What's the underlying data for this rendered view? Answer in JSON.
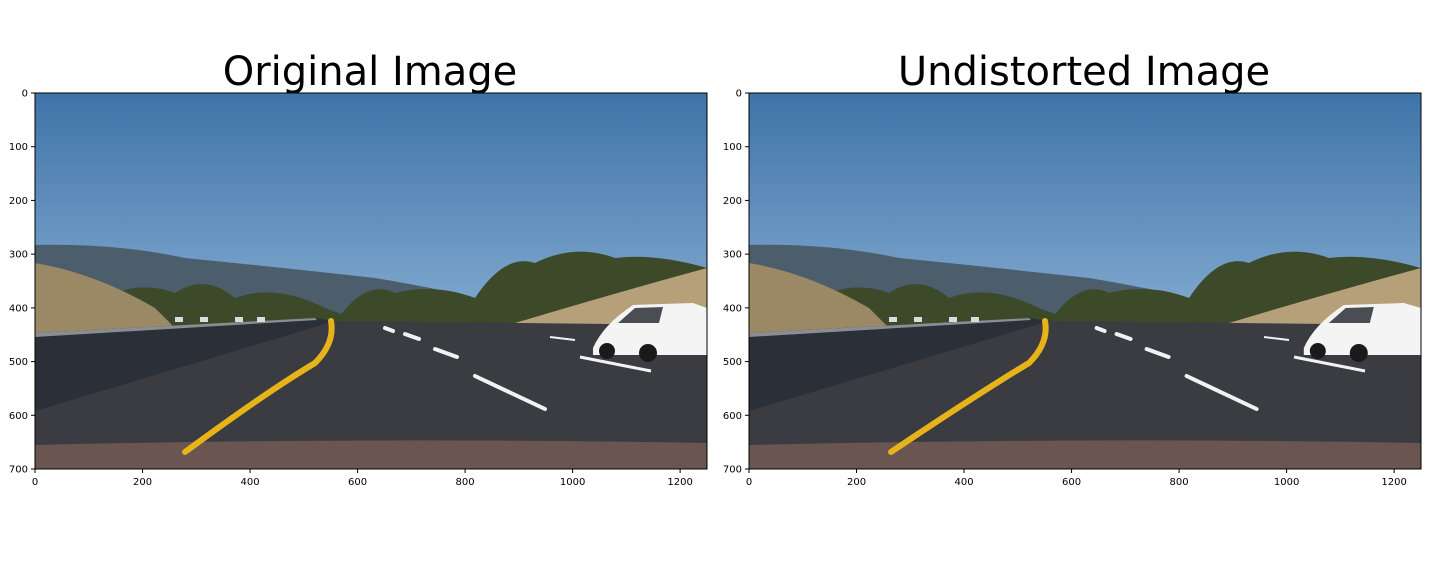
{
  "figure": {
    "panels": [
      {
        "title": "Original Image",
        "y_ticks": [
          "0",
          "100",
          "200",
          "300",
          "400",
          "500",
          "600",
          "700"
        ],
        "x_ticks": [
          "0",
          "200",
          "400",
          "600",
          "800",
          "1000",
          "1200"
        ]
      },
      {
        "title": "Undistorted Image",
        "y_ticks": [
          "0",
          "100",
          "200",
          "300",
          "400",
          "500",
          "600",
          "700"
        ],
        "x_ticks": [
          "0",
          "200",
          "400",
          "600",
          "800",
          "1000",
          "1200"
        ]
      }
    ]
  },
  "colors": {
    "sky_top": "#3f73a8",
    "sky_bottom": "#7fa8cf",
    "road": "#3a3c42",
    "lane_yellow": "#e8b318",
    "lane_white": "#f2f2f2",
    "hills": "#4c5d6b",
    "trees": "#3c4a2a",
    "embankment": "#9b8865",
    "car": "#f4f4f4"
  }
}
